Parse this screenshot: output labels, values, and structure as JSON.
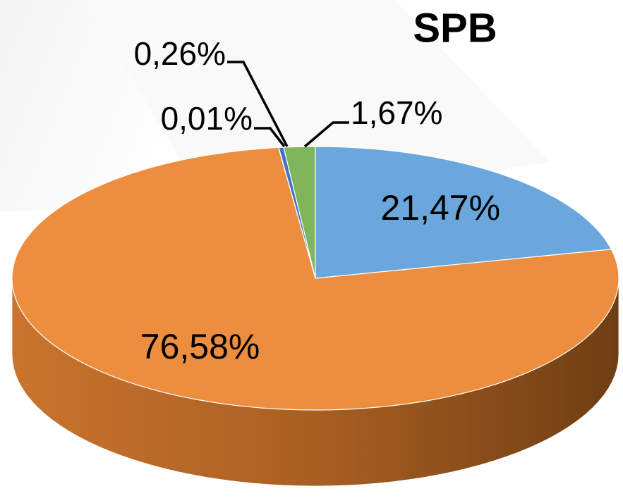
{
  "chart_data": {
    "type": "pie3d",
    "title": "SPB",
    "values": [
      21.47,
      76.58,
      0.01,
      0.26,
      1.67
    ],
    "value_labels": [
      "21,47%",
      "76,58%",
      "0,01%",
      "0,26%",
      "1,67%"
    ],
    "colors": [
      "#6aa7dc",
      "#ed8d3e",
      "#a5a5a5",
      "#4472c4",
      "#80b65b"
    ]
  }
}
